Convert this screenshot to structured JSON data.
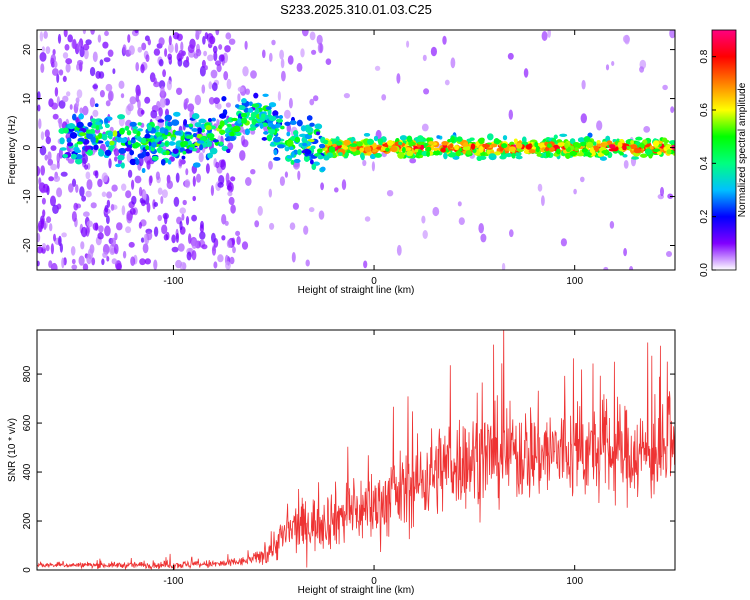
{
  "title": "S233.2025.310.01.03.C25",
  "chart_data": [
    {
      "type": "heatmap",
      "xlabel": "Height of straight line (km)",
      "ylabel": "Frequency (Hz)",
      "xlim": [
        -168,
        150
      ],
      "ylim": [
        -25,
        24
      ],
      "xticks": [
        -100,
        0,
        100
      ],
      "xtick_labels": [
        "-100",
        "0",
        "100"
      ],
      "yticks": [
        -20,
        -10,
        0,
        10,
        20
      ],
      "ytick_labels": [
        "-20",
        "-10",
        "0",
        "10",
        "20"
      ],
      "ridge": {
        "x": [
          -150,
          -130,
          -110,
          -100,
          -90,
          -80,
          -70,
          -60,
          -55,
          -50,
          -45,
          -40,
          -35,
          -30,
          -25,
          -20,
          -10,
          0,
          10,
          20,
          30,
          40,
          50,
          60,
          70,
          80,
          90,
          100,
          110,
          120,
          130,
          140,
          150
        ],
        "frequency": [
          2,
          2,
          1,
          1,
          2,
          3,
          4,
          7,
          6,
          4,
          2,
          0,
          0,
          1,
          0,
          0,
          0,
          0,
          0,
          0,
          0,
          0,
          0,
          0,
          0,
          0,
          0,
          0,
          0,
          0,
          0,
          0,
          0
        ]
      },
      "colorbar": {
        "label": "Normalized spectral amplitude",
        "range": [
          0.0,
          0.9
        ],
        "ticks": [
          0.0,
          0.2,
          0.4,
          0.6,
          0.8
        ],
        "tick_labels": [
          "0.0",
          "0.2",
          "0.4",
          "0.6",
          "0.8"
        ],
        "colors": [
          "#ffffff",
          "#8000ff",
          "#0000ff",
          "#00c0ff",
          "#00ff80",
          "#00ff00",
          "#ffff00",
          "#ff8000",
          "#ff0000",
          "#ff0080"
        ]
      }
    },
    {
      "type": "line",
      "xlabel": "Height of straight line (km)",
      "ylabel": "SNR (10 * v/v)",
      "xlim": [
        -168,
        150
      ],
      "ylim": [
        0,
        980
      ],
      "xticks": [
        -100,
        0,
        100
      ],
      "xtick_labels": [
        "-100",
        "0",
        "100"
      ],
      "yticks": [
        0,
        200,
        400,
        600,
        800
      ],
      "ytick_labels": [
        "0",
        "200",
        "400",
        "600",
        "800"
      ],
      "line_color": "#ee3333",
      "trend": {
        "x": [
          -168,
          -140,
          -110,
          -90,
          -75,
          -65,
          -55,
          -50,
          -45,
          -40,
          -30,
          -20,
          -10,
          0,
          10,
          20,
          30,
          40,
          60,
          80,
          100,
          120,
          150
        ],
        "y": [
          20,
          20,
          20,
          22,
          25,
          35,
          60,
          100,
          140,
          170,
          190,
          215,
          240,
          260,
          300,
          350,
          400,
          440,
          470,
          480,
          480,
          480,
          470
        ]
      },
      "spread": {
        "x": [
          -168,
          -60,
          -50,
          -40,
          -20,
          0,
          20,
          40,
          80,
          100,
          150
        ],
        "y": [
          6,
          12,
          45,
          65,
          80,
          95,
          110,
          125,
          130,
          125,
          120
        ]
      }
    }
  ]
}
